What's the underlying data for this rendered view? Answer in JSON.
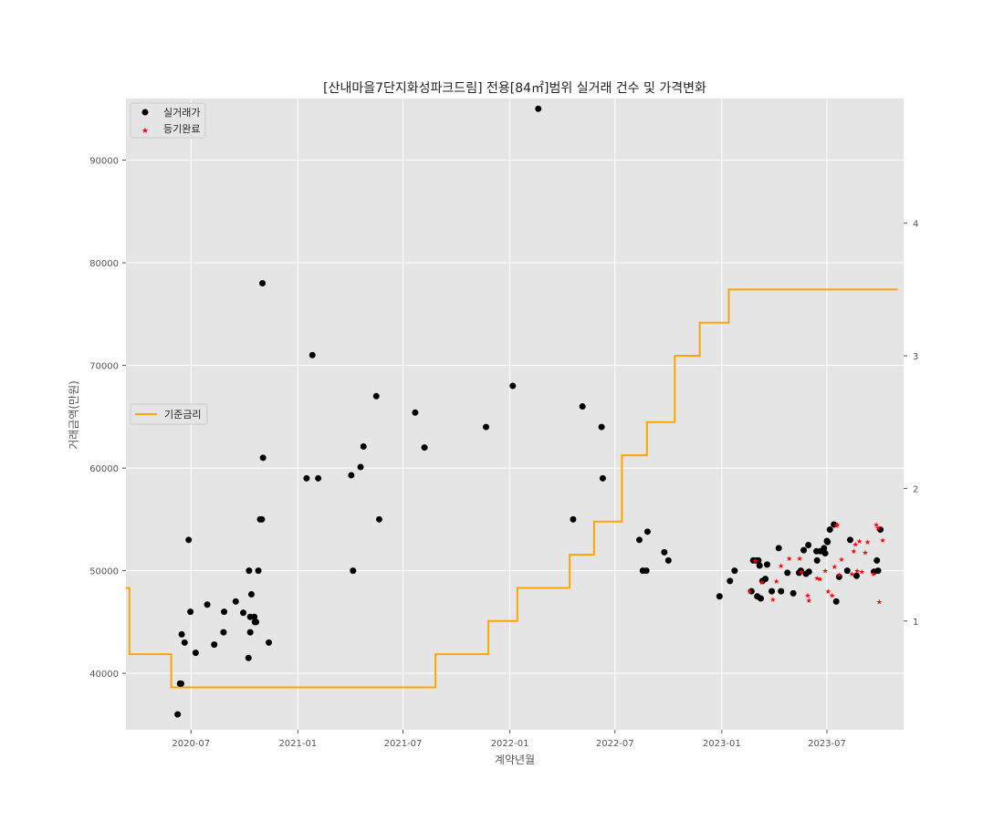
{
  "chart_data": {
    "type": "scatter",
    "title": "[산내마을7단지화성파크드림] 전용[84㎡]범위 실거래 건수 및 가격변화",
    "xlabel": "계약년월",
    "ylabel": "거래금액(만원)",
    "xlim": [
      "2020-03-11",
      "2023-11-10"
    ],
    "ylim": [
      34500,
      96000
    ],
    "y2lim": [
      0.18,
      4.94
    ],
    "x_ticks": [
      {
        "date": "2020-07-01",
        "label": "2020-07"
      },
      {
        "date": "2021-01-01",
        "label": "2021-01"
      },
      {
        "date": "2021-07-01",
        "label": "2021-07"
      },
      {
        "date": "2022-01-01",
        "label": "2022-01"
      },
      {
        "date": "2022-07-01",
        "label": "2022-07"
      },
      {
        "date": "2023-01-01",
        "label": "2023-01"
      },
      {
        "date": "2023-07-01",
        "label": "2023-07"
      }
    ],
    "y_ticks": [
      40000,
      50000,
      60000,
      70000,
      80000,
      90000
    ],
    "y2_ticks": [
      1,
      2,
      3,
      4
    ],
    "grid": true,
    "legend_placement": "top-left",
    "legend2_placement": "center-left",
    "colors": {
      "background": "#e5e5e5",
      "grid": "#ffffff",
      "trade": "#000000",
      "registered": "#ff0000",
      "rate": "#ffa500",
      "axis_text": "#555555"
    },
    "series": [
      {
        "name": "실거래가",
        "marker": "circle",
        "axis": "left",
        "points": [
          [
            "2020-06-08",
            36000
          ],
          [
            "2020-06-12",
            39000
          ],
          [
            "2020-06-14",
            39000
          ],
          [
            "2020-06-15",
            43800
          ],
          [
            "2020-06-20",
            43000
          ],
          [
            "2020-06-27",
            53000
          ],
          [
            "2020-06-30",
            46000
          ],
          [
            "2020-07-09",
            42000
          ],
          [
            "2020-07-29",
            46700
          ],
          [
            "2020-08-10",
            42800
          ],
          [
            "2020-08-26",
            44000
          ],
          [
            "2020-08-27",
            46000
          ],
          [
            "2020-09-16",
            47000
          ],
          [
            "2020-09-29",
            45900
          ],
          [
            "2020-10-08",
            41500
          ],
          [
            "2020-10-09",
            50000
          ],
          [
            "2020-10-11",
            44000
          ],
          [
            "2020-10-11",
            45500
          ],
          [
            "2020-10-13",
            47700
          ],
          [
            "2020-10-18",
            45500
          ],
          [
            "2020-10-19",
            45000
          ],
          [
            "2020-10-21",
            45000
          ],
          [
            "2020-10-25",
            50000
          ],
          [
            "2020-10-28",
            55000
          ],
          [
            "2020-10-31",
            55000
          ],
          [
            "2020-11-01",
            78000
          ],
          [
            "2020-11-02",
            61000
          ],
          [
            "2020-11-12",
            43000
          ],
          [
            "2021-01-16",
            59000
          ],
          [
            "2021-01-26",
            71000
          ],
          [
            "2021-02-05",
            59000
          ],
          [
            "2021-04-03",
            59300
          ],
          [
            "2021-04-06",
            50000
          ],
          [
            "2021-04-19",
            60100
          ],
          [
            "2021-04-24",
            62100
          ],
          [
            "2021-05-16",
            67000
          ],
          [
            "2021-05-21",
            55000
          ],
          [
            "2021-07-22",
            65400
          ],
          [
            "2021-08-07",
            62000
          ],
          [
            "2021-11-21",
            64000
          ],
          [
            "2022-01-06",
            68000
          ],
          [
            "2022-02-19",
            95000
          ],
          [
            "2022-04-20",
            55000
          ],
          [
            "2022-05-06",
            66000
          ],
          [
            "2022-06-08",
            64000
          ],
          [
            "2022-06-10",
            59000
          ],
          [
            "2022-08-12",
            53000
          ],
          [
            "2022-08-18",
            50000
          ],
          [
            "2022-08-24",
            50000
          ],
          [
            "2022-08-26",
            53800
          ],
          [
            "2022-09-24",
            51800
          ],
          [
            "2022-10-01",
            51000
          ],
          [
            "2022-12-28",
            47500
          ],
          [
            "2023-01-15",
            49000
          ],
          [
            "2023-01-23",
            50000
          ],
          [
            "2023-02-21",
            48000
          ],
          [
            "2023-02-24",
            51000
          ],
          [
            "2023-03-01",
            51000
          ],
          [
            "2023-03-03",
            47500
          ],
          [
            "2023-03-05",
            51000
          ],
          [
            "2023-03-07",
            50500
          ],
          [
            "2023-03-09",
            47300
          ],
          [
            "2023-03-12",
            49000
          ],
          [
            "2023-03-17",
            49200
          ],
          [
            "2023-03-20",
            50600
          ],
          [
            "2023-03-28",
            48000
          ],
          [
            "2023-04-09",
            52200
          ],
          [
            "2023-04-13",
            48000
          ],
          [
            "2023-04-24",
            49800
          ],
          [
            "2023-05-04",
            47800
          ],
          [
            "2023-05-14",
            49800
          ],
          [
            "2023-05-17",
            50000
          ],
          [
            "2023-05-22",
            52000
          ],
          [
            "2023-05-26",
            49700
          ],
          [
            "2023-05-30",
            52500
          ],
          [
            "2023-05-31",
            49900
          ],
          [
            "2023-06-13",
            51900
          ],
          [
            "2023-06-14",
            51000
          ],
          [
            "2023-06-20",
            51900
          ],
          [
            "2023-06-26",
            52200
          ],
          [
            "2023-06-28",
            51700
          ],
          [
            "2023-07-01",
            52900
          ],
          [
            "2023-07-02",
            52800
          ],
          [
            "2023-07-06",
            54000
          ],
          [
            "2023-07-13",
            54500
          ],
          [
            "2023-07-17",
            47000
          ],
          [
            "2023-07-22",
            49400
          ],
          [
            "2023-08-05",
            50000
          ],
          [
            "2023-08-10",
            53000
          ],
          [
            "2023-08-21",
            49500
          ],
          [
            "2023-09-20",
            49900
          ],
          [
            "2023-09-25",
            51000
          ],
          [
            "2023-09-27",
            50000
          ],
          [
            "2023-10-01",
            54000
          ]
        ]
      },
      {
        "name": "등기완료",
        "marker": "star",
        "axis": "left",
        "points": [
          [
            "2023-02-18",
            48000
          ],
          [
            "2023-02-28",
            51000
          ],
          [
            "2023-03-11",
            48900
          ],
          [
            "2023-03-30",
            47200
          ],
          [
            "2023-04-05",
            49000
          ],
          [
            "2023-04-13",
            50500
          ],
          [
            "2023-04-27",
            51200
          ],
          [
            "2023-05-15",
            51200
          ],
          [
            "2023-05-18",
            49900
          ],
          [
            "2023-05-29",
            47600
          ],
          [
            "2023-05-31",
            47100
          ],
          [
            "2023-06-14",
            49300
          ],
          [
            "2023-06-19",
            49200
          ],
          [
            "2023-06-28",
            50000
          ],
          [
            "2023-07-03",
            48000
          ],
          [
            "2023-07-10",
            47600
          ],
          [
            "2023-07-14",
            50400
          ],
          [
            "2023-07-17",
            54400
          ],
          [
            "2023-07-19",
            54500
          ],
          [
            "2023-07-22",
            49600
          ],
          [
            "2023-07-26",
            51100
          ],
          [
            "2023-08-13",
            49700
          ],
          [
            "2023-08-16",
            51900
          ],
          [
            "2023-08-19",
            52600
          ],
          [
            "2023-08-22",
            50000
          ],
          [
            "2023-08-26",
            52900
          ],
          [
            "2023-08-30",
            49900
          ],
          [
            "2023-09-05",
            51800
          ],
          [
            "2023-09-09",
            52800
          ],
          [
            "2023-09-19",
            49700
          ],
          [
            "2023-09-24",
            54500
          ],
          [
            "2023-09-27",
            54200
          ],
          [
            "2023-09-29",
            47000
          ],
          [
            "2023-10-05",
            53000
          ]
        ]
      },
      {
        "name": "기준금리",
        "marker": "step",
        "axis": "right",
        "points": [
          [
            "2020-03-01",
            1.25
          ],
          [
            "2020-03-17",
            0.75
          ],
          [
            "2020-05-28",
            0.5
          ],
          [
            "2021-08-26",
            0.75
          ],
          [
            "2021-11-25",
            1.0
          ],
          [
            "2022-01-14",
            1.25
          ],
          [
            "2022-04-14",
            1.5
          ],
          [
            "2022-05-26",
            1.75
          ],
          [
            "2022-07-13",
            2.25
          ],
          [
            "2022-08-25",
            2.5
          ],
          [
            "2022-10-12",
            3.0
          ],
          [
            "2022-11-24",
            3.25
          ],
          [
            "2023-01-13",
            3.5
          ],
          [
            "2023-10-31",
            3.5
          ]
        ]
      }
    ]
  }
}
